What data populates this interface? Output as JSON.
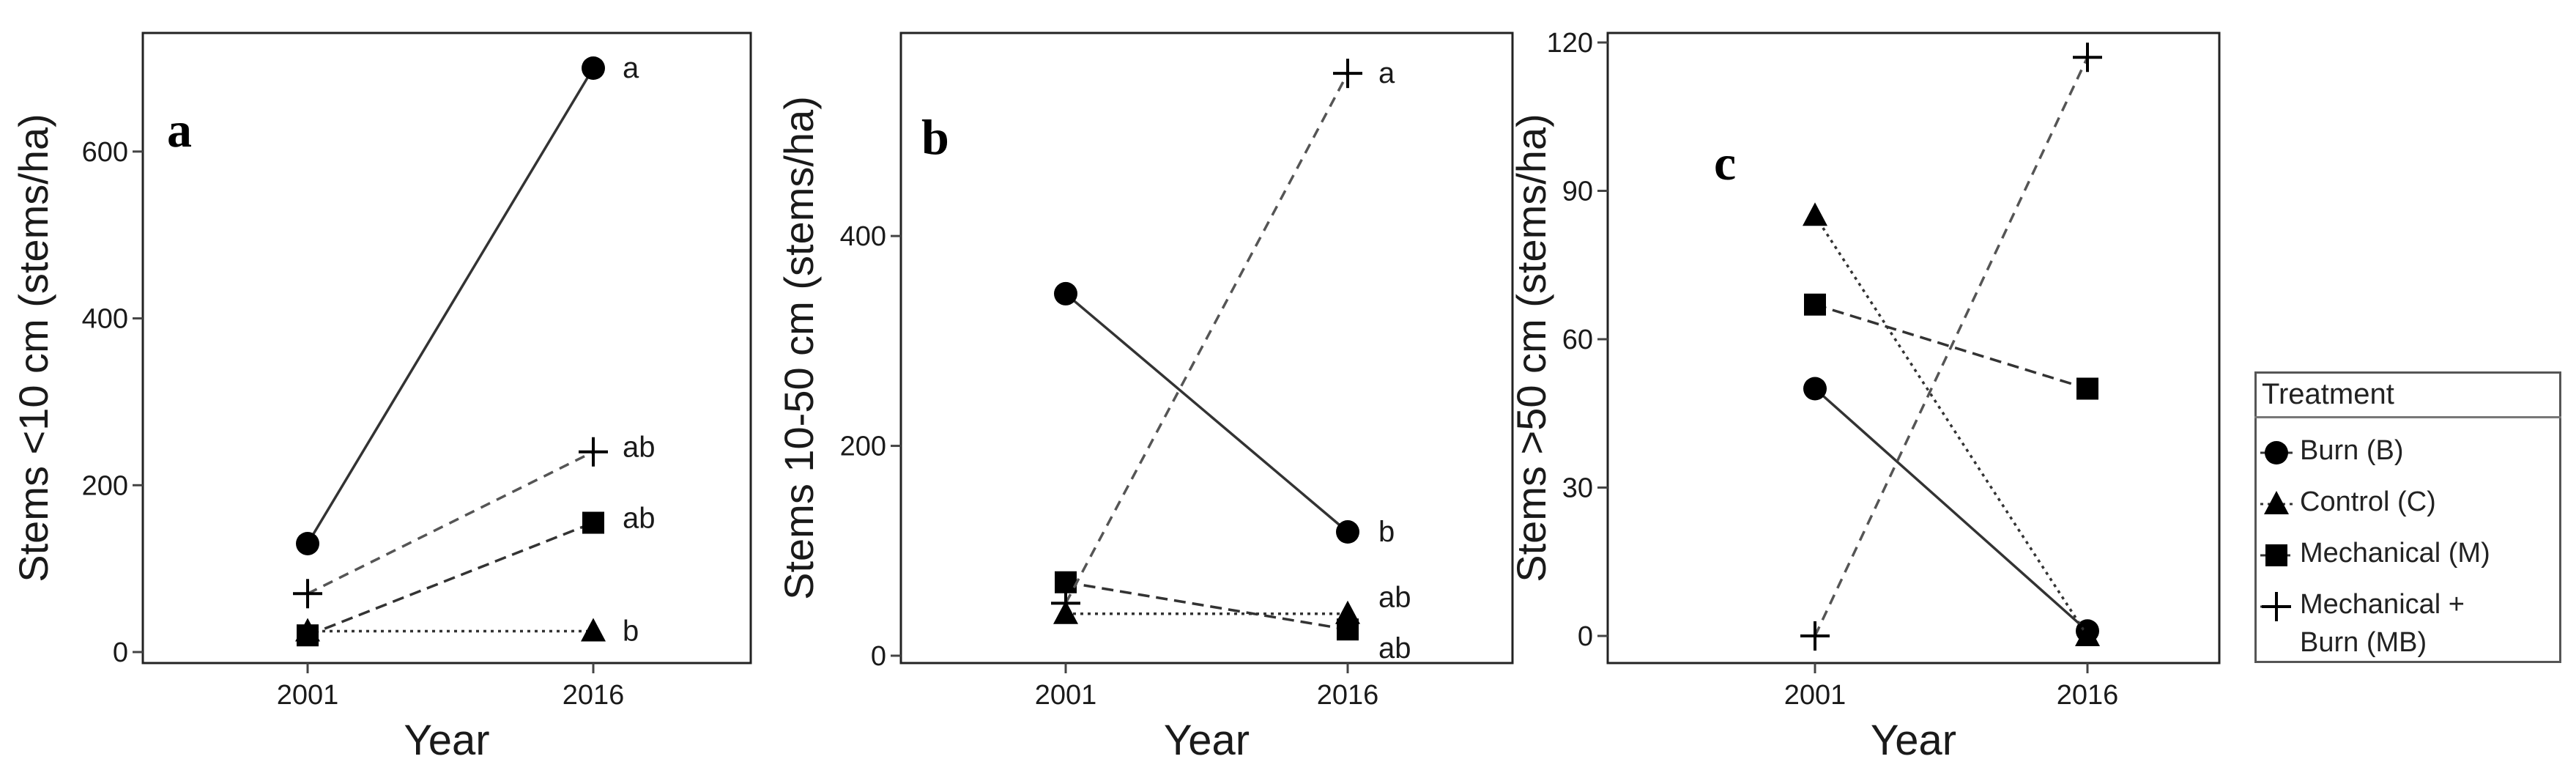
{
  "chart_data": [
    {
      "type": "line",
      "panel_label": "a",
      "xlabel": "Year",
      "ylabel": "Stems <10 cm (stems/ha)",
      "x": [
        "2001",
        "2016"
      ],
      "ylim": [
        0,
        700
      ],
      "yticks": [
        0,
        200,
        400,
        600
      ],
      "series": [
        {
          "key": "burn",
          "values": [
            130,
            700
          ],
          "end_label": "a"
        },
        {
          "key": "control",
          "values": [
            25,
            25
          ],
          "end_label": "b"
        },
        {
          "key": "mechanical",
          "values": [
            20,
            155
          ],
          "end_label": "ab"
        },
        {
          "key": "mechanical_burn",
          "values": [
            70,
            240
          ],
          "end_label": "ab"
        }
      ]
    },
    {
      "type": "line",
      "panel_label": "b",
      "xlabel": "Year",
      "ylabel": "Stems 10-50 cm (stems/ha)",
      "x": [
        "2001",
        "2016"
      ],
      "ylim": [
        0,
        560
      ],
      "yticks": [
        0,
        200,
        400
      ],
      "series": [
        {
          "key": "burn",
          "values": [
            345,
            118
          ],
          "end_label": "b"
        },
        {
          "key": "control",
          "values": [
            40,
            40
          ],
          "end_label": "ab"
        },
        {
          "key": "mechanical",
          "values": [
            70,
            25
          ],
          "end_label": "ab"
        },
        {
          "key": "mechanical_burn",
          "values": [
            50,
            555
          ],
          "end_label": "a"
        }
      ]
    },
    {
      "type": "line",
      "panel_label": "c",
      "xlabel": "Year",
      "ylabel": "Stems >50 cm (stems/ha)",
      "x": [
        "2001",
        "2016"
      ],
      "ylim": [
        0,
        120
      ],
      "yticks": [
        0,
        30,
        60,
        90,
        120
      ],
      "series": [
        {
          "key": "burn",
          "values": [
            50,
            1
          ],
          "end_label": ""
        },
        {
          "key": "control",
          "values": [
            85,
            0
          ],
          "end_label": ""
        },
        {
          "key": "mechanical",
          "values": [
            67,
            50
          ],
          "end_label": ""
        },
        {
          "key": "mechanical_burn",
          "values": [
            0,
            117
          ],
          "end_label": ""
        }
      ]
    }
  ],
  "legend": {
    "title": "Treatment",
    "items": [
      {
        "key": "burn",
        "label": "Burn (B)"
      },
      {
        "key": "control",
        "label": "Control (C)"
      },
      {
        "key": "mechanical",
        "label": "Mechanical (M)"
      },
      {
        "key": "mechanical_burn",
        "label": "Mechanical +",
        "label2": "Burn (MB)"
      }
    ]
  },
  "styles": {
    "burn": {
      "marker": "circle",
      "dash": "solid",
      "color": "#333333"
    },
    "control": {
      "marker": "triangle",
      "dash": "dotted",
      "color": "#333333"
    },
    "mechanical": {
      "marker": "square",
      "dash": "dashed",
      "color": "#333333"
    },
    "mechanical_burn": {
      "marker": "plus",
      "dash": "longdash",
      "color": "#555555"
    }
  }
}
